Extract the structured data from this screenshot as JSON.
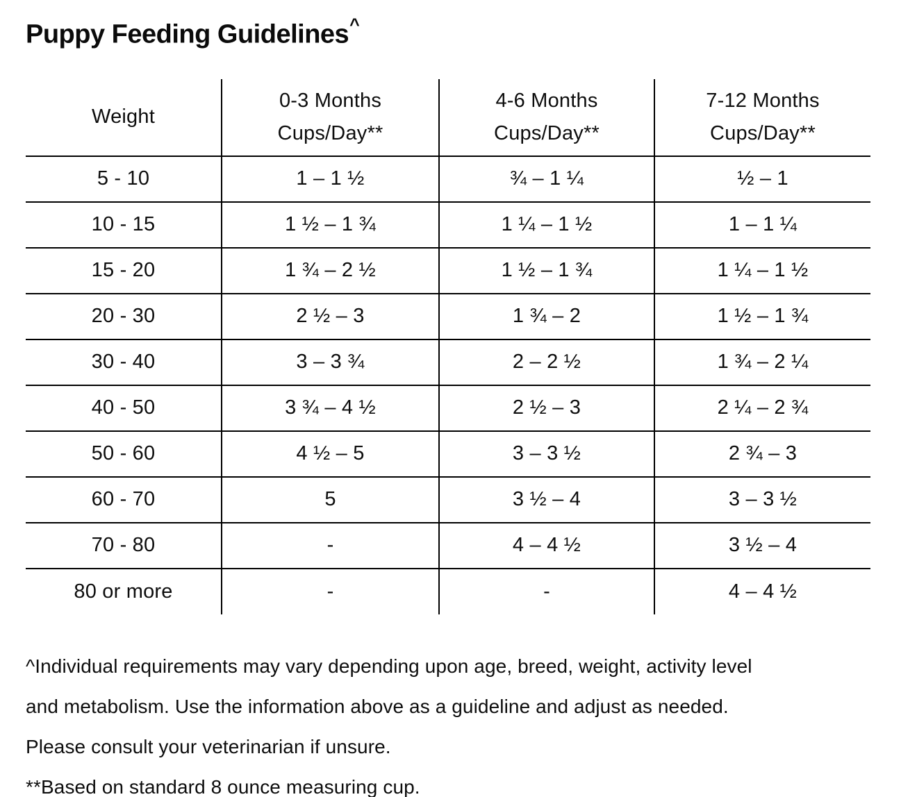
{
  "page": {
    "title": "Puppy Feeding Guidelines",
    "title_superscript": "^"
  },
  "table": {
    "columns": [
      {
        "line1": "Weight",
        "line2": ""
      },
      {
        "line1": "0-3 Months",
        "line2": "Cups/Day**"
      },
      {
        "line1": "4-6 Months",
        "line2": "Cups/Day**"
      },
      {
        "line1": "7-12 Months",
        "line2": "Cups/Day**"
      }
    ],
    "rows": [
      [
        "5 - 10",
        "1 – 1 ½",
        "¾ – 1 ¼",
        "½ – 1"
      ],
      [
        "10 - 15",
        "1 ½ – 1 ¾",
        "1 ¼ – 1 ½",
        "1 – 1 ¼"
      ],
      [
        "15 - 20",
        "1 ¾ – 2 ½",
        "1 ½ – 1 ¾",
        "1 ¼ – 1 ½"
      ],
      [
        "20 - 30",
        "2 ½ – 3",
        "1 ¾ – 2",
        "1 ½ – 1 ¾"
      ],
      [
        "30 - 40",
        "3 – 3 ¾",
        "2 – 2 ½",
        "1 ¾ – 2 ¼"
      ],
      [
        "40 - 50",
        "3 ¾ – 4 ½",
        "2 ½ – 3",
        "2 ¼ – 2 ¾"
      ],
      [
        "50 - 60",
        "4 ½ – 5",
        "3 – 3 ½",
        "2 ¾ – 3"
      ],
      [
        "60 - 70",
        "5",
        "3 ½ – 4",
        "3 – 3 ½"
      ],
      [
        "70 - 80",
        "-",
        "4 – 4 ½",
        "3 ½ – 4"
      ],
      [
        "80 or more",
        "-",
        "-",
        "4 – 4 ½"
      ]
    ]
  },
  "footnotes": {
    "lines": [
      "^Individual requirements may vary depending upon age, breed, weight, activity level",
      "and metabolism. Use the information above as a guideline and adjust as needed.",
      "Please consult your veterinarian if unsure.",
      "**Based on standard 8 ounce measuring cup."
    ]
  }
}
